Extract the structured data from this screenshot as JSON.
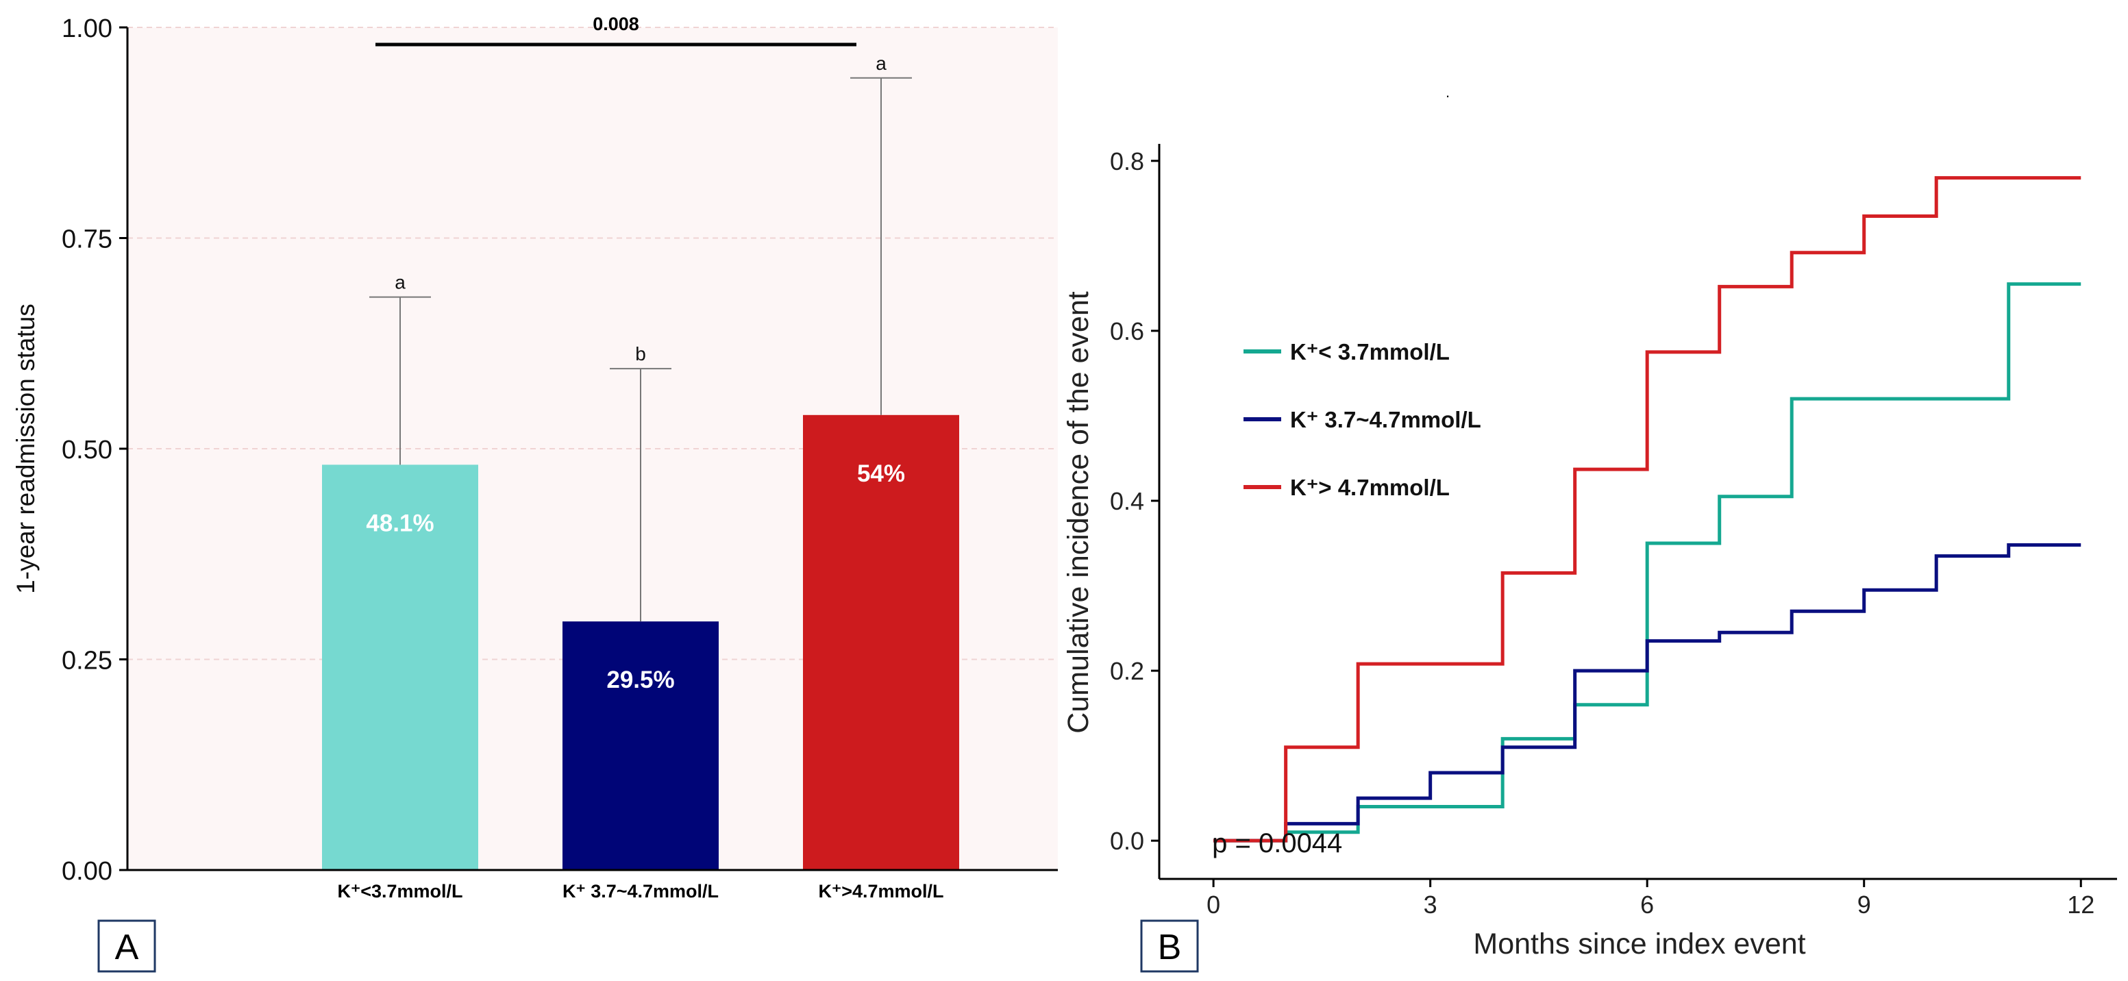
{
  "chart_data": [
    {
      "panel": "A",
      "type": "bar",
      "title": "",
      "xlabel": "",
      "ylabel": "1-year readmission status",
      "ylim": [
        0,
        1.0
      ],
      "yticks": [
        "0.00",
        "0.25",
        "0.50",
        "0.75",
        "1.00"
      ],
      "yticks_values": [
        0,
        0.25,
        0.5,
        0.75,
        1.0
      ],
      "grid": true,
      "background_color": "#fdf6f6",
      "categories": [
        "K⁺<3.7mmol/L",
        "K⁺ 3.7~4.7mmol/L",
        "K⁺>4.7mmol/L"
      ],
      "values": [
        0.481,
        0.295,
        0.54
      ],
      "error_upper": [
        0.68,
        0.595,
        0.94
      ],
      "value_labels": [
        "48.1%",
        "29.5%",
        "54%"
      ],
      "letters": [
        "a",
        "b",
        "a"
      ],
      "colors": [
        "#76d9d0",
        "#000577",
        "#cd1b1e"
      ],
      "comparison": {
        "from_index": 0,
        "to_index": 2,
        "label": "0.008"
      }
    },
    {
      "panel": "B",
      "type": "line",
      "title": "",
      "xlabel": "Months since index event",
      "ylabel": "Cumulative incidence of the event",
      "xlim": [
        -0.75,
        12.5
      ],
      "ylim": [
        -0.045,
        0.82
      ],
      "xticks": [
        "0",
        "3",
        "6",
        "9",
        "12"
      ],
      "xticks_values": [
        0,
        3,
        6,
        9,
        12
      ],
      "yticks": [
        "0.0",
        "0.2",
        "0.4",
        "0.6",
        "0.8"
      ],
      "yticks_values": [
        0,
        0.2,
        0.4,
        0.6,
        0.8
      ],
      "grid": false,
      "step": true,
      "annotation": "p = 0.0044",
      "legend_position": "upper-left",
      "series": [
        {
          "name": "K⁺< 3.7mmol/L",
          "color": "#15a891",
          "x": [
            0,
            1,
            2,
            4,
            5,
            6,
            7,
            8,
            11,
            12
          ],
          "y": [
            0,
            0.01,
            0.04,
            0.12,
            0.16,
            0.35,
            0.405,
            0.52,
            0.655,
            0.655
          ]
        },
        {
          "name": "K⁺ 3.7~4.7mmol/L",
          "color": "#0a0f80",
          "x": [
            0,
            1,
            2,
            3,
            4,
            5,
            6,
            7,
            8,
            9,
            10,
            11,
            12
          ],
          "y": [
            0,
            0.02,
            0.05,
            0.08,
            0.11,
            0.2,
            0.235,
            0.245,
            0.27,
            0.295,
            0.335,
            0.348,
            0.348
          ]
        },
        {
          "name": "K⁺> 4.7mmol/L",
          "color": "#d42024",
          "x": [
            0,
            1,
            2,
            4,
            5,
            6,
            7,
            8,
            9,
            10,
            12
          ],
          "y": [
            0,
            0.11,
            0.208,
            0.315,
            0.437,
            0.575,
            0.652,
            0.692,
            0.735,
            0.78,
            0.78
          ]
        }
      ]
    }
  ]
}
